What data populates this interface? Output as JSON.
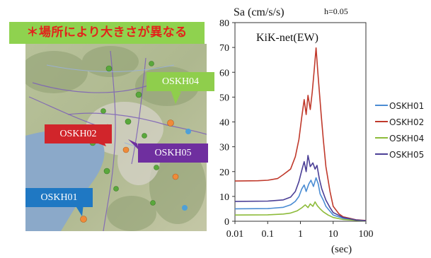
{
  "banner": {
    "text": "＊場所により大きさが異なる"
  },
  "map": {
    "labels": [
      {
        "id": "OSKH04",
        "text": "OSKH04",
        "color": "#8fce4c"
      },
      {
        "id": "OSKH02",
        "text": "OSKH02",
        "color": "#d1252b"
      },
      {
        "id": "OSKH05",
        "text": "OSKH05",
        "color": "#6f2f9f"
      },
      {
        "id": "OSKH01",
        "text": "OSKH01",
        "color": "#1f78c3"
      }
    ]
  },
  "chart_data": {
    "type": "line",
    "ylabel": "Sa (cm/s/s)",
    "damping": "h=0.05",
    "title": "KiK-net(EW)",
    "xlabel": "(sec)",
    "x_scale": "log",
    "xlim": [
      0.01,
      100
    ],
    "ylim": [
      0,
      80
    ],
    "x_ticks": [
      "0.01",
      "0.1",
      "1",
      "10",
      "100"
    ],
    "y_ticks": [
      "0",
      "10",
      "20",
      "30",
      "40",
      "50",
      "60",
      "70",
      "80"
    ],
    "legend_position": "right",
    "series": [
      {
        "name": "OSKH01",
        "color": "#4a8cd3",
        "points": [
          [
            0.01,
            5
          ],
          [
            0.1,
            5.1
          ],
          [
            0.3,
            5.6
          ],
          [
            0.5,
            6.6
          ],
          [
            0.7,
            8
          ],
          [
            0.9,
            10
          ],
          [
            1.1,
            13
          ],
          [
            1.3,
            14.6
          ],
          [
            1.5,
            12
          ],
          [
            1.8,
            15
          ],
          [
            2.1,
            16.5
          ],
          [
            2.5,
            14
          ],
          [
            3,
            17.5
          ],
          [
            3.5,
            15
          ],
          [
            4,
            11
          ],
          [
            5,
            8.5
          ],
          [
            6,
            6
          ],
          [
            8,
            4
          ],
          [
            10,
            2.5
          ],
          [
            20,
            1.2
          ],
          [
            50,
            0.4
          ],
          [
            100,
            0.2
          ]
        ]
      },
      {
        "name": "OSKH02",
        "color": "#c0392b",
        "points": [
          [
            0.01,
            16.2
          ],
          [
            0.05,
            16.3
          ],
          [
            0.1,
            16.5
          ],
          [
            0.2,
            17.2
          ],
          [
            0.3,
            18.8
          ],
          [
            0.5,
            21
          ],
          [
            0.7,
            26
          ],
          [
            0.9,
            33
          ],
          [
            1.1,
            42
          ],
          [
            1.3,
            49
          ],
          [
            1.5,
            43
          ],
          [
            1.7,
            50.7
          ],
          [
            2.0,
            45
          ],
          [
            2.3,
            52
          ],
          [
            2.6,
            60
          ],
          [
            3.0,
            69.8
          ],
          [
            3.4,
            60
          ],
          [
            3.8,
            52
          ],
          [
            4.3,
            43
          ],
          [
            5,
            33
          ],
          [
            6,
            22
          ],
          [
            8,
            12
          ],
          [
            10,
            6
          ],
          [
            15,
            3
          ],
          [
            20,
            1.8
          ],
          [
            50,
            0.6
          ],
          [
            100,
            0.3
          ]
        ]
      },
      {
        "name": "OSKH04",
        "color": "#8dbb3a",
        "points": [
          [
            0.01,
            2.5
          ],
          [
            0.1,
            2.6
          ],
          [
            0.3,
            2.9
          ],
          [
            0.5,
            3.3
          ],
          [
            0.8,
            4.2
          ],
          [
            1.1,
            5.4
          ],
          [
            1.4,
            6.6
          ],
          [
            1.7,
            5.5
          ],
          [
            2.0,
            7.0
          ],
          [
            2.4,
            6
          ],
          [
            2.8,
            7.8
          ],
          [
            3.3,
            6.2
          ],
          [
            4,
            5
          ],
          [
            5,
            3.8
          ],
          [
            7,
            2.5
          ],
          [
            10,
            1.5
          ],
          [
            20,
            0.7
          ],
          [
            100,
            0.1
          ]
        ]
      },
      {
        "name": "OSKH05",
        "color": "#4b3f96",
        "points": [
          [
            0.01,
            8
          ],
          [
            0.1,
            8.1
          ],
          [
            0.3,
            8.6
          ],
          [
            0.5,
            9.7
          ],
          [
            0.7,
            12
          ],
          [
            0.9,
            16
          ],
          [
            1.1,
            20.5
          ],
          [
            1.3,
            24
          ],
          [
            1.5,
            20
          ],
          [
            1.7,
            26.5
          ],
          [
            2.0,
            22
          ],
          [
            2.4,
            23.5
          ],
          [
            2.8,
            21
          ],
          [
            3.2,
            22.5
          ],
          [
            3.8,
            17
          ],
          [
            4.5,
            13
          ],
          [
            6,
            8.5
          ],
          [
            8,
            5.5
          ],
          [
            10,
            3.5
          ],
          [
            20,
            1.5
          ],
          [
            50,
            0.5
          ],
          [
            100,
            0.2
          ]
        ]
      }
    ]
  }
}
